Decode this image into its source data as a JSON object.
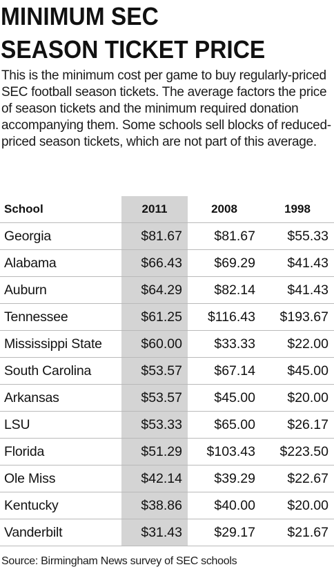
{
  "title": {
    "line1": "MINIMUM SEC",
    "line2": "SEASON TICKET PRICE"
  },
  "intro": "This is the minimum cost per game to buy regularly-priced SEC football season tickets. The average factors the price of season tickets and the minimum required donation accompanying them. Some schools sell blocks of reduced-priced season tickets, which are not part of this average.",
  "source": "Source: Birmingham News survey of SEC schools",
  "colors": {
    "highlight_column": "#d4d4d4",
    "rule": "#b9b9b9",
    "text": "#111111"
  },
  "chart_data": {
    "type": "table",
    "columns": [
      "School",
      "2011",
      "2008",
      "1998"
    ],
    "highlighted_column": "2011",
    "rows": [
      [
        "Georgia",
        "$81.67",
        "$81.67",
        "$55.33"
      ],
      [
        "Alabama",
        "$66.43",
        "$69.29",
        "$41.43"
      ],
      [
        "Auburn",
        "$64.29",
        "$82.14",
        "$41.43"
      ],
      [
        "Tennessee",
        "$61.25",
        "$116.43",
        "$193.67"
      ],
      [
        "Mississippi State",
        "$60.00",
        "$33.33",
        "$22.00"
      ],
      [
        "South Carolina",
        "$53.57",
        "$67.14",
        "$45.00"
      ],
      [
        "Arkansas",
        "$53.57",
        "$45.00",
        "$20.00"
      ],
      [
        "LSU",
        "$53.33",
        "$65.00",
        "$26.17"
      ],
      [
        "Florida",
        "$51.29",
        "$103.43",
        "$223.50"
      ],
      [
        "Ole Miss",
        "$42.14",
        "$39.29",
        "$22.67"
      ],
      [
        "Kentucky",
        "$38.86",
        "$40.00",
        "$20.00"
      ],
      [
        "Vanderbilt",
        "$31.43",
        "$29.17",
        "$21.67"
      ]
    ]
  }
}
